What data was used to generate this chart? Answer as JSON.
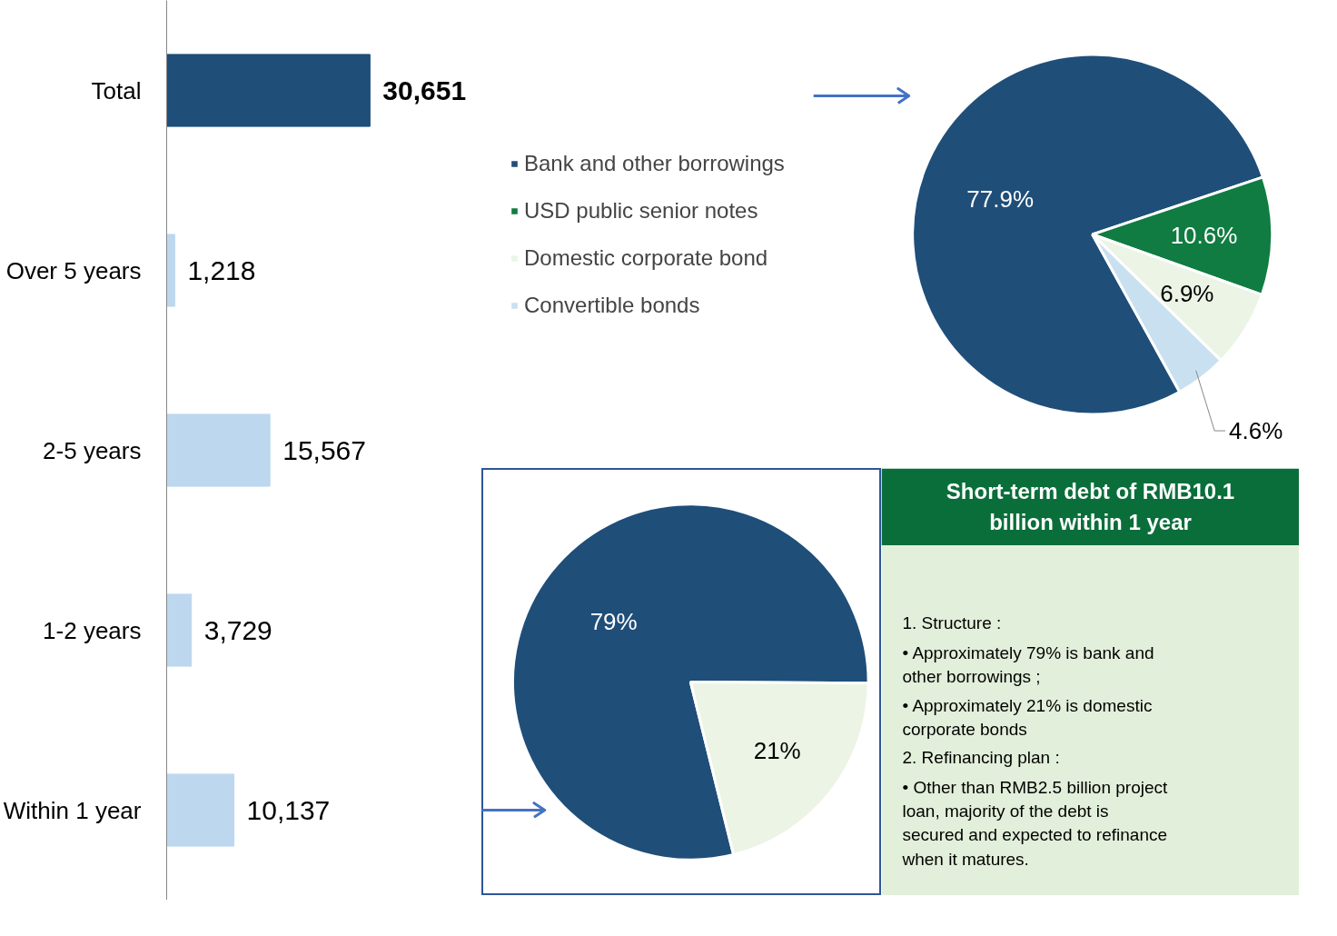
{
  "chart_data": [
    {
      "type": "bar",
      "orientation": "horizontal",
      "categories": [
        "Total",
        "Over 5 years",
        "2-5 years",
        "1-2 years",
        "Within 1 year"
      ],
      "values": [
        30651,
        1218,
        15567,
        3729,
        10137
      ],
      "colors": [
        "#1f4e79",
        "#bdd7ee",
        "#bdd7ee",
        "#bdd7ee",
        "#bdd7ee"
      ],
      "value_labels": [
        "30,651",
        "1,218",
        "15,567",
        "3,729",
        "10,137"
      ]
    },
    {
      "type": "pie",
      "categories": [
        "Bank and other borrowings",
        "USD public senior notes",
        "Domestic corporate bond",
        "Convertible bonds"
      ],
      "values": [
        77.9,
        10.6,
        6.9,
        4.6
      ],
      "colors": [
        "#1f4e79",
        "#107c41",
        "#ebf4e5",
        "#c9e0f0"
      ],
      "value_labels": [
        "77.9%",
        "10.6%",
        "6.9%",
        "4.6%"
      ],
      "legend": "left"
    },
    {
      "type": "pie",
      "categories": [
        null,
        null
      ],
      "values": [
        79,
        21
      ],
      "colors": [
        "#1f4e79",
        "#ebf4e5"
      ],
      "value_labels": [
        "79%",
        "21%"
      ]
    },
    {
      "type": "other",
      "title": "Short-term debt of RMB10.1 billion within 1 year",
      "annotations": [
        "1.  Structure :",
        "•  Approximately 79% is bank and other borrowings ;",
        "•  Approximately 21% is domestic corporate bonds",
        "2.  Refinancing plan :",
        "•  Other than RMB2.5 billion project loan, majority of the debt is secured and expected to refinance when it matures."
      ]
    }
  ]
}
